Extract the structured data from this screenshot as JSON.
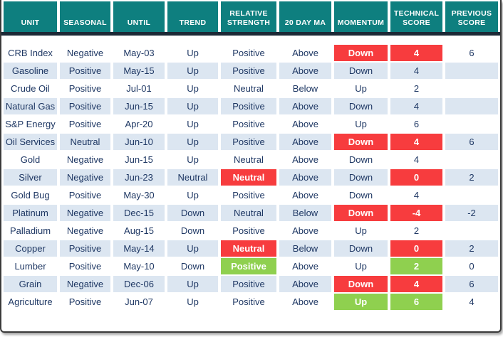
{
  "colors": {
    "header_teal": "#0e7f7f",
    "header_underline": "#1c2936",
    "row_base": "#ffffff",
    "row_alt": "#dce6f1",
    "highlight_red": "#f73c3e",
    "highlight_green": "#8fd04f",
    "text_navy": "#1f3864"
  },
  "table": {
    "columns": [
      "UNIT",
      "SEASONAL",
      "UNTIL",
      "TREND",
      "RELATIVE STRENGTH",
      "20 DAY MA",
      "MOMENTUM",
      "TECHNICAL SCORE",
      "PREVIOUS SCORE"
    ],
    "rows": [
      {
        "cells": [
          {
            "text": "CRB Index"
          },
          {
            "text": "Negative"
          },
          {
            "text": "May-03"
          },
          {
            "text": "Up"
          },
          {
            "text": "Positive"
          },
          {
            "text": "Above"
          },
          {
            "text": "Down",
            "hl": "red"
          },
          {
            "text": "4",
            "hl": "red"
          },
          {
            "text": "6"
          }
        ]
      },
      {
        "cells": [
          {
            "text": "Gasoline"
          },
          {
            "text": "Positive"
          },
          {
            "text": "May-15"
          },
          {
            "text": "Up"
          },
          {
            "text": "Positive"
          },
          {
            "text": "Above"
          },
          {
            "text": "Down"
          },
          {
            "text": "4"
          },
          {
            "text": ""
          }
        ]
      },
      {
        "cells": [
          {
            "text": "Crude Oil"
          },
          {
            "text": "Positive"
          },
          {
            "text": "Jul-01"
          },
          {
            "text": "Up"
          },
          {
            "text": "Neutral"
          },
          {
            "text": "Below"
          },
          {
            "text": "Up"
          },
          {
            "text": "2"
          },
          {
            "text": ""
          }
        ]
      },
      {
        "cells": [
          {
            "text": "Natural Gas"
          },
          {
            "text": "Positive"
          },
          {
            "text": "Jun-15"
          },
          {
            "text": "Up"
          },
          {
            "text": "Positive"
          },
          {
            "text": "Above"
          },
          {
            "text": "Down"
          },
          {
            "text": "4"
          },
          {
            "text": ""
          }
        ]
      },
      {
        "cells": [
          {
            "text": "S&P Energy"
          },
          {
            "text": "Positive"
          },
          {
            "text": "Apr-20"
          },
          {
            "text": "Up"
          },
          {
            "text": "Positive"
          },
          {
            "text": "Above"
          },
          {
            "text": "Up"
          },
          {
            "text": "6"
          },
          {
            "text": ""
          }
        ]
      },
      {
        "cells": [
          {
            "text": "Oil Services"
          },
          {
            "text": "Neutral"
          },
          {
            "text": "Jun-10"
          },
          {
            "text": "Up"
          },
          {
            "text": "Positive"
          },
          {
            "text": "Above"
          },
          {
            "text": "Down",
            "hl": "red"
          },
          {
            "text": "4",
            "hl": "red"
          },
          {
            "text": "6"
          }
        ]
      },
      {
        "cells": [
          {
            "text": "Gold"
          },
          {
            "text": "Negative"
          },
          {
            "text": "Jun-15"
          },
          {
            "text": "Up"
          },
          {
            "text": "Neutral"
          },
          {
            "text": "Above"
          },
          {
            "text": "Down"
          },
          {
            "text": "4"
          },
          {
            "text": ""
          }
        ]
      },
      {
        "cells": [
          {
            "text": "Silver"
          },
          {
            "text": "Negative"
          },
          {
            "text": "Jun-23"
          },
          {
            "text": "Neutral"
          },
          {
            "text": "Neutral",
            "hl": "red"
          },
          {
            "text": "Above"
          },
          {
            "text": "Down"
          },
          {
            "text": "0",
            "hl": "red"
          },
          {
            "text": "2"
          }
        ]
      },
      {
        "cells": [
          {
            "text": "Gold Bug"
          },
          {
            "text": "Positive"
          },
          {
            "text": "May-30"
          },
          {
            "text": "Up"
          },
          {
            "text": "Positive"
          },
          {
            "text": "Above"
          },
          {
            "text": "Down"
          },
          {
            "text": "4"
          },
          {
            "text": ""
          }
        ]
      },
      {
        "cells": [
          {
            "text": "Platinum"
          },
          {
            "text": "Negative"
          },
          {
            "text": "Dec-15"
          },
          {
            "text": "Down"
          },
          {
            "text": "Neutral"
          },
          {
            "text": "Below"
          },
          {
            "text": "Down",
            "hl": "red"
          },
          {
            "text": "-4",
            "hl": "red"
          },
          {
            "text": "-2"
          }
        ]
      },
      {
        "cells": [
          {
            "text": "Palladium"
          },
          {
            "text": "Negative"
          },
          {
            "text": "Aug-15"
          },
          {
            "text": "Down"
          },
          {
            "text": "Positive"
          },
          {
            "text": "Above"
          },
          {
            "text": "Up"
          },
          {
            "text": "2"
          },
          {
            "text": ""
          }
        ]
      },
      {
        "cells": [
          {
            "text": "Copper"
          },
          {
            "text": "Positive"
          },
          {
            "text": "May-14"
          },
          {
            "text": "Up"
          },
          {
            "text": "Neutral",
            "hl": "red"
          },
          {
            "text": "Below"
          },
          {
            "text": "Down"
          },
          {
            "text": "0",
            "hl": "red"
          },
          {
            "text": "2"
          }
        ]
      },
      {
        "cells": [
          {
            "text": "Lumber"
          },
          {
            "text": "Positive"
          },
          {
            "text": "May-10"
          },
          {
            "text": "Down"
          },
          {
            "text": "Positive",
            "hl": "green"
          },
          {
            "text": "Above"
          },
          {
            "text": "Up"
          },
          {
            "text": "2",
            "hl": "green"
          },
          {
            "text": "0"
          }
        ]
      },
      {
        "cells": [
          {
            "text": "Grain"
          },
          {
            "text": "Negative"
          },
          {
            "text": "Dec-06"
          },
          {
            "text": "Up"
          },
          {
            "text": "Positive"
          },
          {
            "text": "Above"
          },
          {
            "text": "Down",
            "hl": "red"
          },
          {
            "text": "4",
            "hl": "red"
          },
          {
            "text": "6"
          }
        ]
      },
      {
        "cells": [
          {
            "text": "Agriculture"
          },
          {
            "text": "Positive"
          },
          {
            "text": "Jun-07"
          },
          {
            "text": "Up"
          },
          {
            "text": "Positive"
          },
          {
            "text": "Above"
          },
          {
            "text": "Up",
            "hl": "green"
          },
          {
            "text": "6",
            "hl": "green"
          },
          {
            "text": "4"
          }
        ]
      }
    ]
  }
}
